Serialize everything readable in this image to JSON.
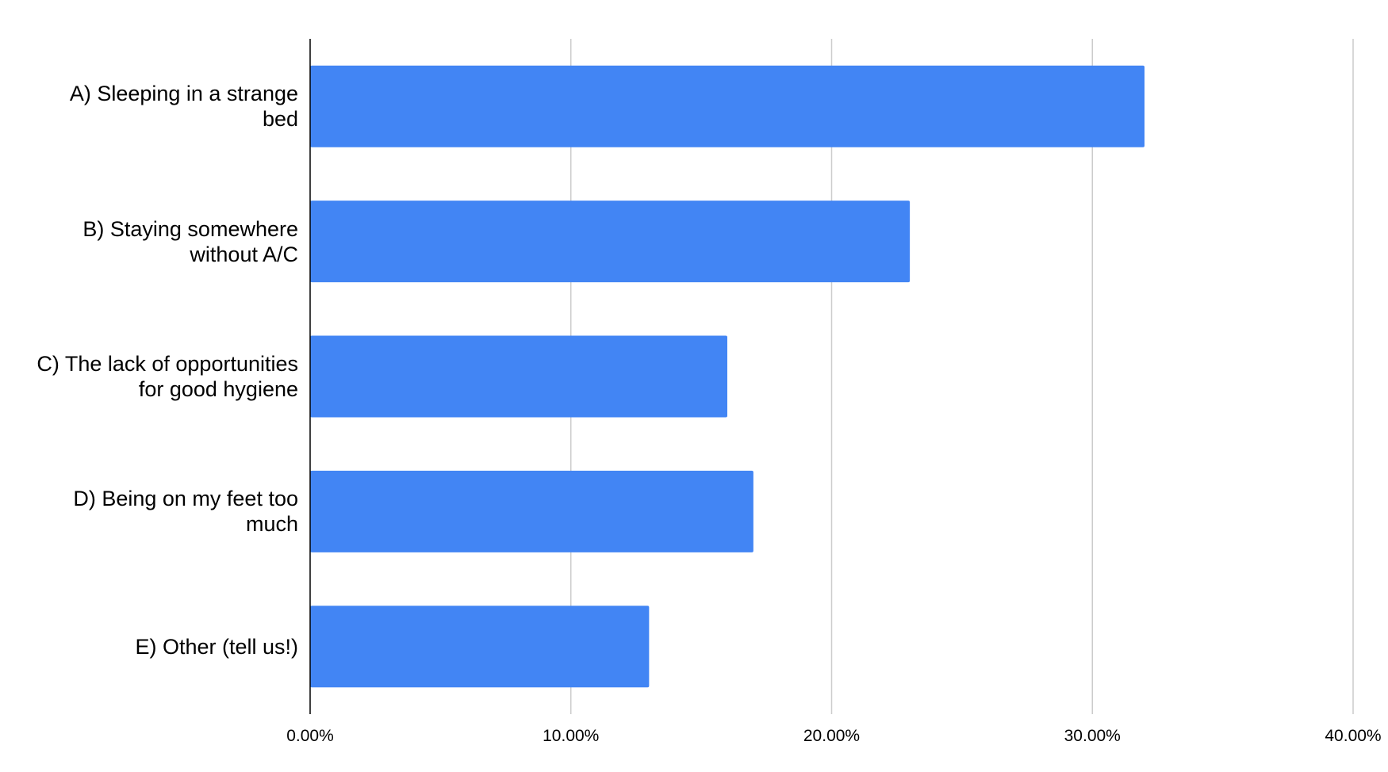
{
  "chart_data": {
    "type": "bar",
    "orientation": "horizontal",
    "categories": [
      "A) Sleeping in a strange bed",
      "B) Staying somewhere without A/C",
      "C) The lack of opportunities for good hygiene",
      "D) Being on my feet too much",
      "E) Other (tell us!)"
    ],
    "values": [
      32,
      23,
      16,
      17,
      13
    ],
    "color": "#4285f4",
    "xlim": [
      0,
      40
    ],
    "xticks": [
      {
        "value": 0,
        "label": "0.00%"
      },
      {
        "value": 10,
        "label": "10.00%"
      },
      {
        "value": 20,
        "label": "20.00%"
      },
      {
        "value": 30,
        "label": "30.00%"
      },
      {
        "value": 40,
        "label": "40.00%"
      }
    ],
    "grid": true
  }
}
